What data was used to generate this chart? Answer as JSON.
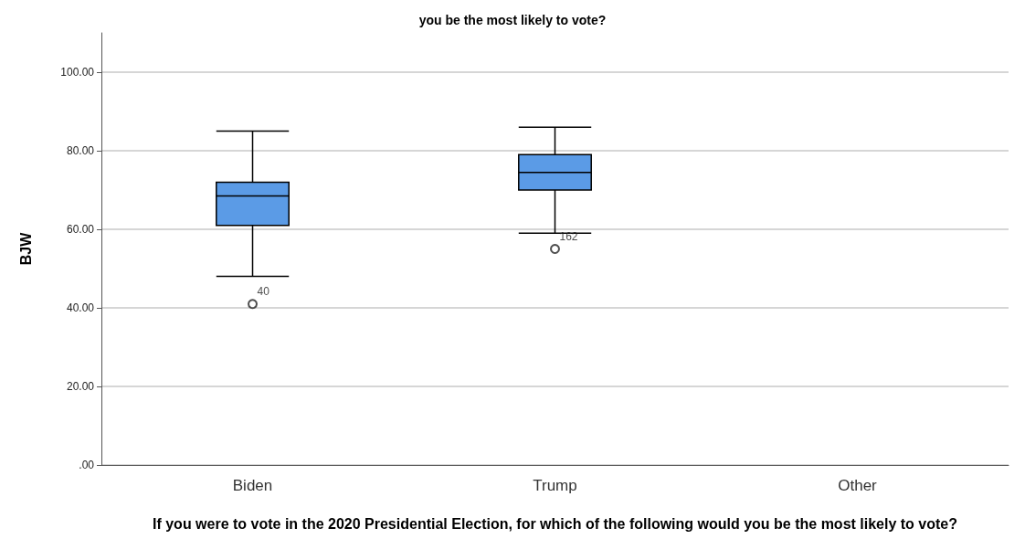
{
  "chart_data": {
    "type": "box",
    "title": "you be the most likely to vote?",
    "xlabel": "If you were to vote in the 2020 Presidential Election, for which of the following would you be the most likely to vote?",
    "ylabel": "BJW",
    "categories": [
      "Biden",
      "Trump",
      "Other"
    ],
    "boxes": [
      {
        "low": 48,
        "q1": 61,
        "median": 68.5,
        "q3": 72,
        "high": 85,
        "outliers": [
          41
        ]
      },
      {
        "low": 59,
        "q1": 70,
        "median": 74.5,
        "q3": 79,
        "high": 86,
        "outliers": [
          55
        ]
      },
      null
    ],
    "color": "#5b9be6",
    "ylim": [
      0,
      110
    ],
    "yticks": [
      {
        "value": 0,
        "label": ".00"
      },
      {
        "value": 20,
        "label": "20.00"
      },
      {
        "value": 40,
        "label": "40.00"
      },
      {
        "value": 60,
        "label": "60.00"
      },
      {
        "value": 80,
        "label": "80.00"
      },
      {
        "value": 100,
        "label": "100.00"
      }
    ],
    "grid": "y",
    "annotations": [
      "40",
      "162"
    ]
  }
}
